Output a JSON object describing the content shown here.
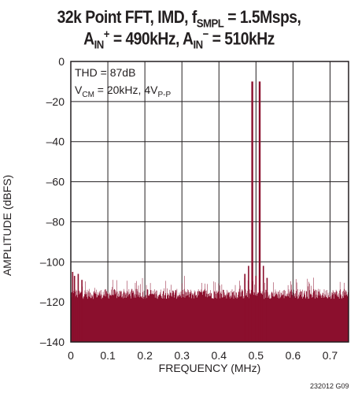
{
  "chart_data": {
    "type": "bar",
    "title_line1_pre": "32k Point FFT, IMD, f",
    "title_line1_sub": "SMPL",
    "title_line1_post": " = 1.5Msps,",
    "title_line2_a": "A",
    "title_line2_a_sub": "IN",
    "title_line2_a_sup": "+",
    "title_line2_mid": " = 490kHz, A",
    "title_line2_b_sub": "IN",
    "title_line2_b_sup": "−",
    "title_line2_post": " = 510kHz",
    "xlabel": "FREQUENCY (MHz)",
    "ylabel": "AMPLITUDE (dBFS)",
    "xlim": [
      0,
      0.75
    ],
    "ylim": [
      -140,
      0
    ],
    "x_ticks": [
      0,
      0.1,
      0.2,
      0.3,
      0.4,
      0.5,
      0.6,
      0.7
    ],
    "x_tick_labels": [
      "0",
      "0.1",
      "0.2",
      "0.3",
      "0.4",
      "0.5",
      "0.6",
      "0.7"
    ],
    "y_ticks": [
      0,
      -20,
      -40,
      -60,
      -80,
      -100,
      -120,
      -140
    ],
    "y_tick_labels": [
      "0",
      "–20",
      "–40",
      "–60",
      "–80",
      "–100",
      "–120",
      "–140"
    ],
    "grid": true,
    "noise_floor_dbfs": -115,
    "series": [
      {
        "values": [
          {
            "x": 0.49,
            "y": -10
          },
          {
            "x": 0.51,
            "y": -10
          },
          {
            "x": 0.47,
            "y": -108
          },
          {
            "x": 0.53,
            "y": -108
          },
          {
            "x": 0.48,
            "y": -102
          },
          {
            "x": 0.52,
            "y": -102
          },
          {
            "x": 0.5,
            "y": -107
          },
          {
            "x": 0.47,
            "y": -106
          },
          {
            "x": 0.005,
            "y": -105
          },
          {
            "x": 0.01,
            "y": -107
          },
          {
            "x": 0.03,
            "y": -109
          },
          {
            "x": 0.02,
            "y": -106
          }
        ]
      }
    ],
    "colors": {
      "bars": "#8b0f2d",
      "grid": "#231f20",
      "frame": "#231f20"
    }
  },
  "annotations": {
    "thd": "THD = 87dB",
    "vcm_pre": "V",
    "vcm_sub": "CM",
    "vcm_mid": " = 20kHz, 4V",
    "vcm_sub2": "P-P"
  },
  "figure_id": "232012 G09"
}
